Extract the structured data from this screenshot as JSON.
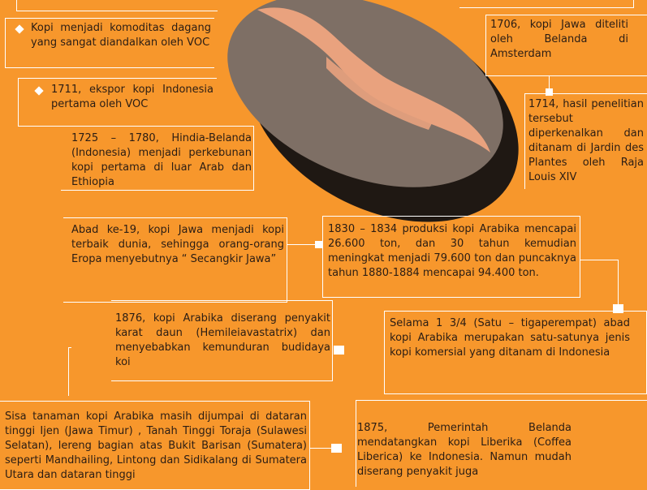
{
  "facts": {
    "voc_commodity": "Kopi menjadi komoditas dagang yang sangat diandalkan oleh VOC",
    "export_1711": "1711, ekspor kopi Indonesia pertama oleh VOC",
    "plantation_1725": "1725 – 1780, Hindia-Belanda (Indonesia) menjadi perkebunan kopi pertama di luar Arab dan Ethiopia",
    "java_best": "Abad ke-19, kopi Jawa menjadi kopi terbaik dunia, sehingga orang-orang Eropa menyebutnya “ Secangkir Jawa”",
    "rust_1876": "1876, kopi Arabika diserang penyakit karat daun (Hemileiavastatrix) dan menyebabkan kemunduran budidaya koi",
    "remaining": "Sisa tanaman kopi Arabika masih dijumpai di dataran tinggi Ijen (Jawa Timur) , Tanah Tinggi Toraja (Sulawesi Selatan), lereng bagian atas Bukit Barisan (Sumatera) seperti Mandhailing, Lintong dan Sidikalang di Sumatera Utara dan dataran tinggi",
    "research_1706": "1706, kopi Jawa diteliti oleh Belanda di Amsterdam",
    "jardin_1714": "1714, hasil penelitian tersebut diperkenalkan dan ditanam di Jardin des Plantes oleh Raja Louis XIV",
    "production_1830": "1830 – 1834 produksi kopi Arabika mencapai 26.600 ton, dan 30 tahun kemudian meningkat menjadi 79.600 ton dan puncaknya tahun 1880-1884 mencapai 94.400 ton.",
    "century_arabica": "Selama 1 3/4 (Satu – tigaperempat) abad kopi Arabika merupakan satu-satunya jenis kopi komersial yang ditanam di Indonesia",
    "liberica_1875": "1875, Pemerintah Belanda mendatangkan kopi Liberika (Coffea Liberica) ke Indonesia. Namun mudah diserang penyakit juga"
  },
  "colors": {
    "background": "#F7972C",
    "bean_outer": "#7E6F65",
    "bean_shadow": "#1F1813",
    "bean_stripe": "#E9A27E",
    "line": "#FFFFFF",
    "text": "#2B1D14"
  },
  "icons": {
    "bullet": "diamond",
    "connector": "white-square",
    "illustration": "coffee-bean"
  }
}
